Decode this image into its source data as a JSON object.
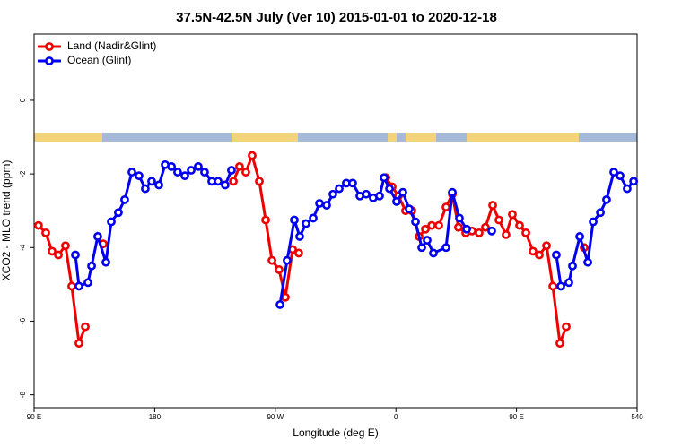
{
  "chart_data": {
    "type": "line",
    "title": "37.5N-42.5N July (Ver 10)   2015-01-01 to 2020-12-18",
    "x_label": "Longitude (deg E)",
    "y_label": "XCO2 - MLO trend (ppm)",
    "xlim": [
      90,
      540
    ],
    "xticks": [
      {
        "value": 90,
        "label": "90 E"
      },
      180,
      {
        "value": 270,
        "label": "90 W"
      },
      {
        "value": 360,
        "label": "0"
      },
      {
        "value": 450,
        "label": "90 E"
      },
      540
    ],
    "ylim": [
      -8.35,
      1.8
    ],
    "yticks": [
      0,
      -2,
      -4,
      -6,
      -8
    ],
    "legend": "top-left",
    "series": [
      {
        "name": "Land (Nadir&Glint)",
        "color": "#ee0000",
        "x": [
          93.3,
          98.7,
          103.4,
          108.1,
          113.4,
          118.1,
          123.5,
          128.2,
          null,
          141.6,
          null,
          238.7,
          243.3,
          248.0,
          252.7,
          258.1,
          262.8,
          267.5,
          272.8,
          277.5,
          282.9,
          287.5,
          null,
          352.5,
          357.2,
          361.9,
          367.2,
          371.9,
          377.3,
          382.0,
          386.7,
          392.0,
          397.4,
          402.1,
          406.7,
          412.1,
          416.8,
          422.1,
          426.8,
          432.2,
          436.9,
          442.2,
          446.9,
          452.3,
          457.0,
          462.3,
          467.0,
          472.4,
          477.1,
          482.4,
          487.1,
          null,
          500.5
        ],
        "values": [
          -3.4,
          -3.6,
          -4.1,
          -4.2,
          -3.95,
          -5.05,
          -6.6,
          -6.15,
          null,
          -3.9,
          null,
          -2.2,
          -1.8,
          -1.95,
          -1.5,
          -2.2,
          -3.25,
          -4.35,
          -4.6,
          -5.35,
          -4.05,
          -4.15,
          null,
          -2.1,
          -2.35,
          -2.6,
          -3.0,
          -3.0,
          -3.7,
          -3.5,
          -3.4,
          -3.4,
          -2.9,
          -2.55,
          -3.45,
          -3.6,
          -3.55,
          -3.6,
          -3.45,
          -2.85,
          -3.25,
          -3.65,
          -3.1,
          -3.4,
          -3.6,
          -4.1,
          -4.2,
          -3.95,
          -5.05,
          -6.6,
          -6.15,
          null,
          -4.0
        ]
      },
      {
        "name": "Ocean (Glint)",
        "color": "#0000ee",
        "x": [
          120.8,
          123.5,
          130.2,
          132.9,
          137.5,
          143.6,
          147.6,
          152.9,
          157.6,
          163.0,
          168.3,
          173.0,
          177.7,
          183.1,
          187.8,
          192.5,
          197.1,
          202.5,
          207.2,
          212.5,
          217.2,
          222.6,
          227.3,
          232.6,
          237.3,
          null,
          273.5,
          278.8,
          284.2,
          288.2,
          292.9,
          298.3,
          303.0,
          308.3,
          313.0,
          317.7,
          323.0,
          327.7,
          333.1,
          337.8,
          343.1,
          347.8,
          351.2,
          355.2,
          360.5,
          365.2,
          369.9,
          374.6,
          379.3,
          383.3,
          388.0,
          397.4,
          402.1,
          407.4,
          412.8,
          null,
          431.5,
          null,
          479.7,
          483.1,
          489.1,
          491.8,
          497.2,
          503.2,
          507.2,
          512.6,
          517.2,
          522.6,
          527.3,
          532.6,
          537.4
        ],
        "values": [
          -4.2,
          -5.05,
          -4.95,
          -4.5,
          -3.7,
          -4.4,
          -3.3,
          -3.05,
          -2.7,
          -1.95,
          -2.05,
          -2.4,
          -2.2,
          -2.3,
          -1.75,
          -1.8,
          -1.95,
          -2.05,
          -1.9,
          -1.8,
          -1.95,
          -2.2,
          -2.2,
          -2.3,
          -1.9,
          null,
          -5.55,
          -4.35,
          -3.25,
          -3.7,
          -3.35,
          -3.2,
          -2.8,
          -2.85,
          -2.55,
          -2.4,
          -2.25,
          -2.25,
          -2.6,
          -2.55,
          -2.65,
          -2.6,
          -2.1,
          -2.4,
          -2.75,
          -2.5,
          -2.95,
          -3.3,
          -4.0,
          -3.8,
          -4.15,
          -4.0,
          -2.5,
          -3.2,
          -3.5,
          null,
          -3.55,
          null,
          -4.2,
          -5.05,
          -4.95,
          -4.5,
          -3.7,
          -4.4,
          -3.3,
          -3.05,
          -2.7,
          -1.95,
          -2.05,
          -2.4,
          -2.2
        ]
      }
    ]
  }
}
